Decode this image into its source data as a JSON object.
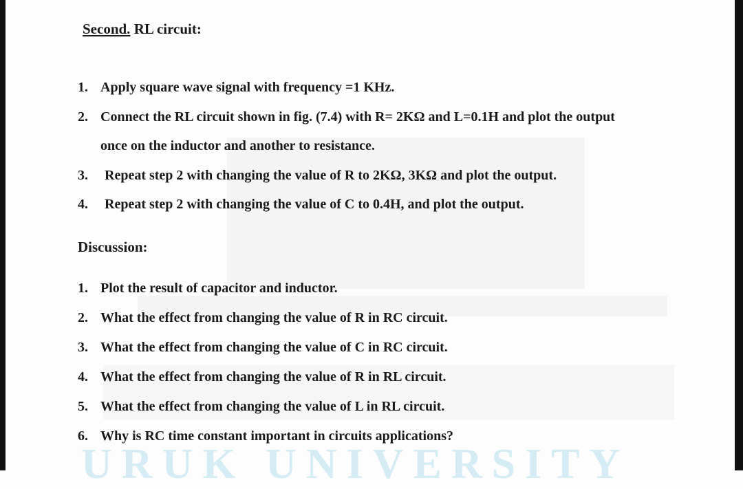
{
  "header": {
    "label": "Second.",
    "title": "RL circuit:"
  },
  "steps": [
    {
      "number": "1.",
      "text": "Apply square wave signal with frequency =1 KHz."
    },
    {
      "number": "2.",
      "text": "Connect the RL circuit shown in fig. (7.4) with R= 2KΩ and L=0.1H and plot the output",
      "continuation": "once on the inductor and another to resistance."
    },
    {
      "number": "3.",
      "text": "Repeat step 2 with changing the value of R to 2KΩ, 3KΩ and plot the output."
    },
    {
      "number": "4.",
      "text": "Repeat step 2 with changing the value of C to 0.4H, and plot the output."
    }
  ],
  "discussion": {
    "title": "Discussion:",
    "items": [
      {
        "number": "1.",
        "text": "Plot the result of capacitor and inductor."
      },
      {
        "number": "2.",
        "text": "What the effect from changing the value of R in RC circuit."
      },
      {
        "number": "3.",
        "text": "What the effect from changing the value of C in RC circuit."
      },
      {
        "number": "4.",
        "text": "What the effect from changing the value of R in RL circuit."
      },
      {
        "number": "5.",
        "text": "What the effect from changing the value of L in RL circuit."
      },
      {
        "number": "6.",
        "text": "Why is RC time constant important in circuits applications?"
      }
    ]
  },
  "watermark": "URUK UNIVERSITY"
}
